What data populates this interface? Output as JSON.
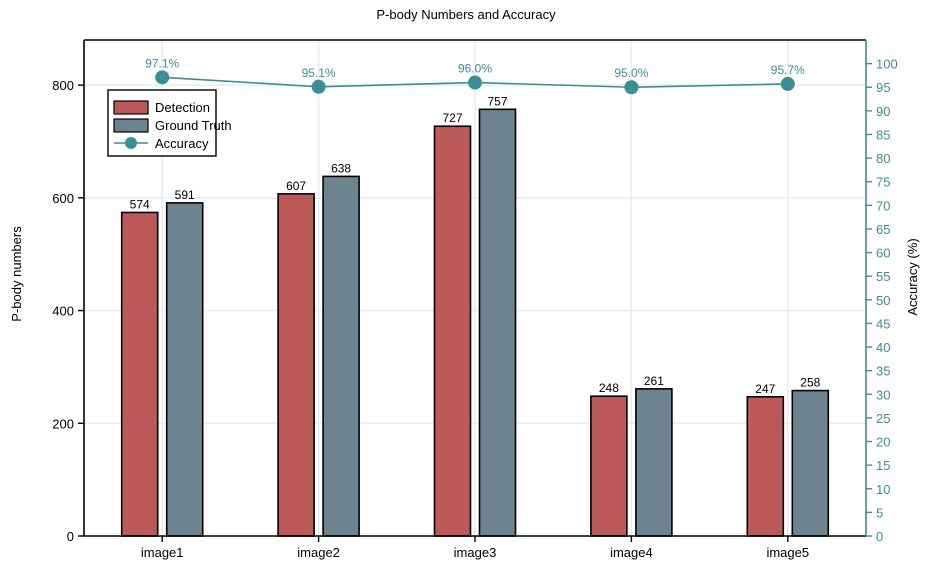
{
  "chart_data": {
    "type": "bar",
    "title": "P-body Numbers and Accuracy",
    "categories": [
      "image1",
      "image2",
      "image3",
      "image4",
      "image5"
    ],
    "ylabel": "P-body numbers",
    "ylabel_right": "Accuracy (%)",
    "ylim": [
      0,
      880
    ],
    "ylim_right": [
      0,
      105
    ],
    "yticks": [
      0,
      200,
      400,
      600,
      800
    ],
    "yticks_right": [
      0,
      5,
      10,
      15,
      20,
      25,
      30,
      35,
      40,
      45,
      50,
      55,
      60,
      65,
      70,
      75,
      80,
      85,
      90,
      95,
      100
    ],
    "grid": true,
    "legend_position": "top-left",
    "series": [
      {
        "name": "Detection",
        "type": "bar",
        "axis": "left",
        "color": "#bc5a5a",
        "values": [
          574,
          607,
          727,
          248,
          247
        ]
      },
      {
        "name": "Ground Truth",
        "type": "bar",
        "axis": "left",
        "color": "#6e8390",
        "values": [
          591,
          638,
          757,
          261,
          258
        ]
      },
      {
        "name": "Accuracy",
        "type": "line",
        "axis": "right",
        "color": "#3c8e95",
        "values": [
          97.1,
          95.1,
          96.0,
          95.0,
          95.7
        ],
        "labels": [
          "97.1%",
          "95.1%",
          "96.0%",
          "95.0%",
          "95.7%"
        ]
      }
    ],
    "colors": {
      "accent_axis": "#3c8e95",
      "grid": "#e3eeee"
    }
  }
}
